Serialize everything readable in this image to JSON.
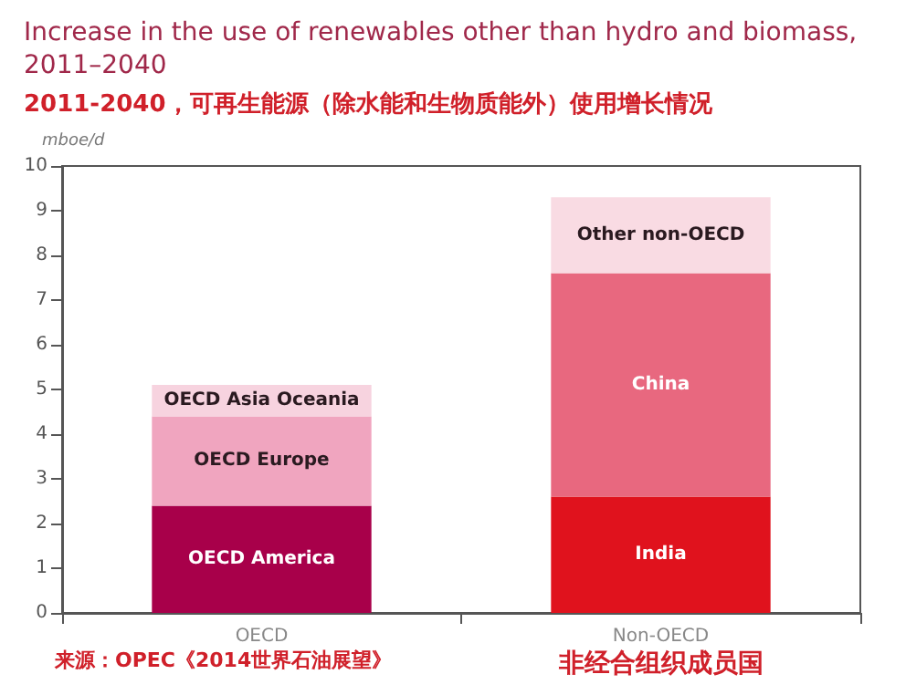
{
  "chart_data": {
    "type": "bar",
    "title": "Increase in the use of renewables other than hydro and biomass, 2011–2040",
    "subtitle": "2011-2040，可再生能源（除水能和生物质能外）使用增长情况",
    "ylabel": "mboe/d",
    "categories": [
      "OECD",
      "Non-OECD"
    ],
    "stacked": true,
    "ylim": [
      0,
      10
    ],
    "yticks": [
      0,
      1,
      2,
      3,
      4,
      5,
      6,
      7,
      8,
      9,
      10
    ],
    "grid": false,
    "legend": false,
    "series": [
      {
        "name": "OECD America",
        "color": "#a8004a",
        "values": [
          2.4,
          null
        ]
      },
      {
        "name": "OECD Europe",
        "color": "#f0a5bf",
        "values": [
          2.0,
          null
        ]
      },
      {
        "name": "OECD Asia Oceania",
        "color": "#f7d3df",
        "values": [
          0.7,
          null
        ]
      },
      {
        "name": "India",
        "color": "#e0121d",
        "values": [
          null,
          2.6
        ]
      },
      {
        "name": "China",
        "color": "#e8687f",
        "values": [
          null,
          5.0
        ]
      },
      {
        "name": "Other non-OECD",
        "color": "#f9dbe3",
        "values": [
          null,
          1.7
        ]
      }
    ],
    "annotations": [
      "来源：OPEC《2014世界石油展望》",
      "非经合组织成员国"
    ]
  }
}
